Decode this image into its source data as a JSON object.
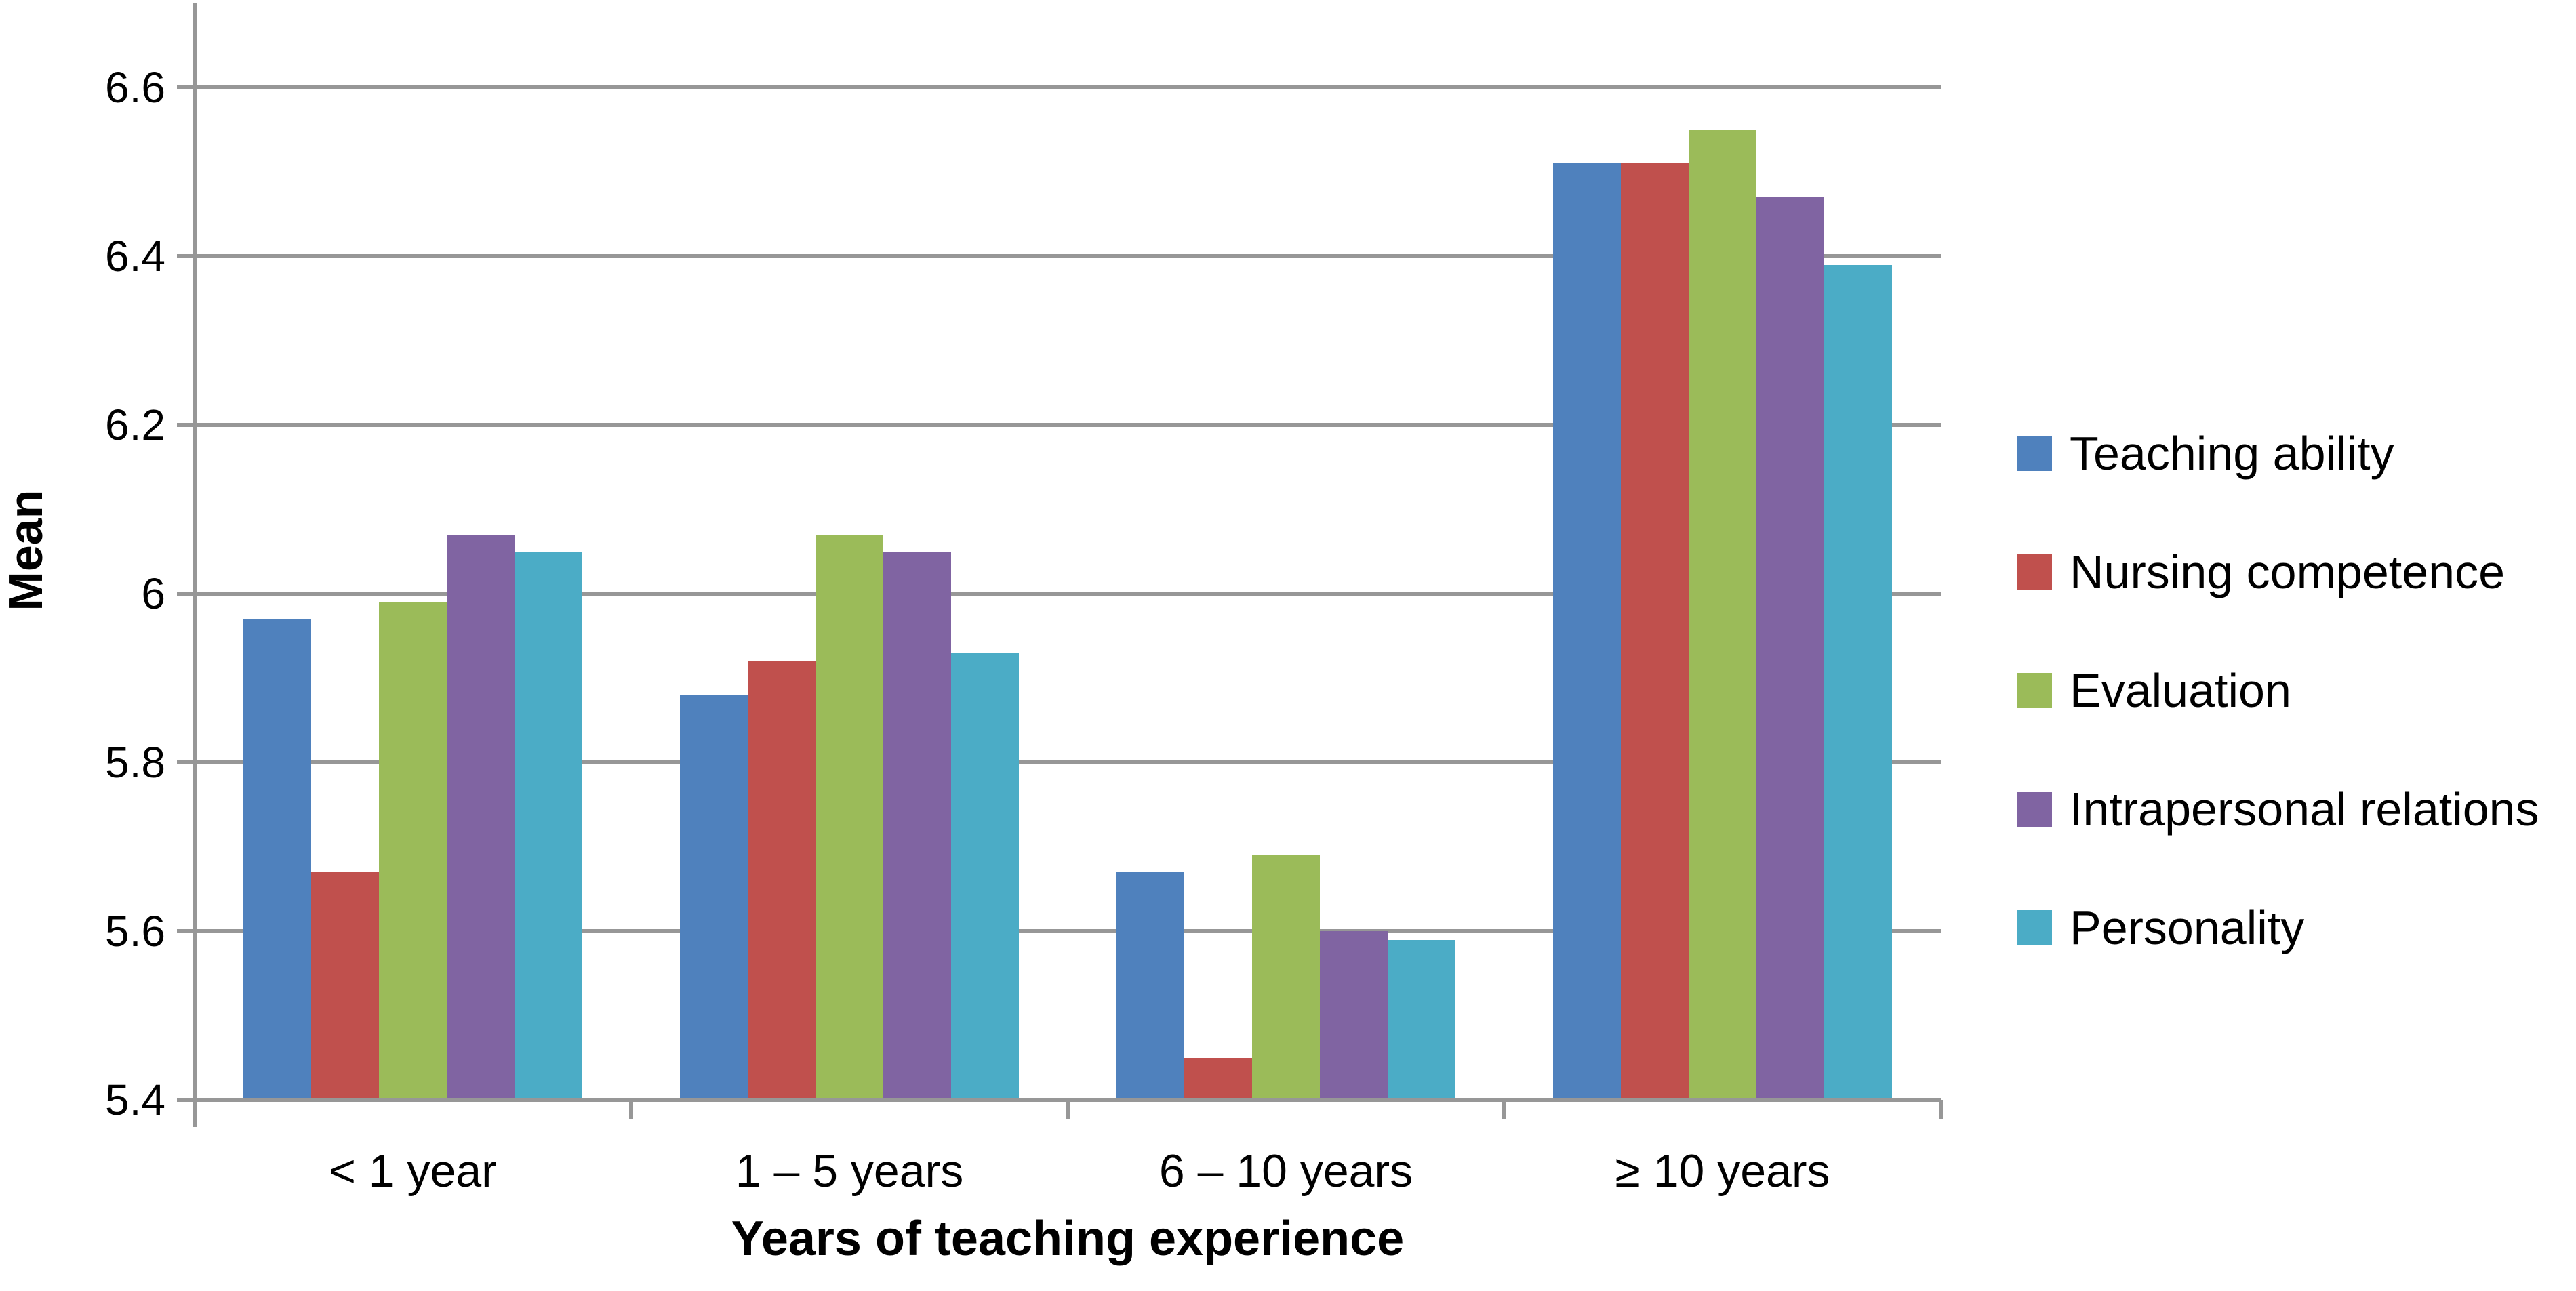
{
  "chart_data": {
    "type": "bar",
    "title": "",
    "xlabel": "Years of teaching experience",
    "ylabel": "Mean",
    "categories": [
      "< 1 year",
      "1 – 5 years",
      "6 –  10 years",
      "≥ 10 years"
    ],
    "series": [
      {
        "name": "Teaching ability",
        "color": "#4F81BD",
        "values": [
          5.97,
          5.88,
          5.67,
          6.51
        ]
      },
      {
        "name": "Nursing competence",
        "color": "#C0504D",
        "values": [
          5.67,
          5.92,
          5.45,
          6.51
        ]
      },
      {
        "name": "Evaluation",
        "color": "#9BBB59",
        "values": [
          5.99,
          6.07,
          5.69,
          6.55
        ]
      },
      {
        "name": "Intrapersonal relations",
        "color": "#8064A2",
        "values": [
          6.07,
          6.05,
          5.6,
          6.47
        ]
      },
      {
        "name": "Personality",
        "color": "#4BACC6",
        "values": [
          6.05,
          5.93,
          5.59,
          6.39
        ]
      }
    ],
    "ylim": [
      5.4,
      6.7
    ],
    "yticks": [
      {
        "value": 5.4,
        "label": "5.4"
      },
      {
        "value": 5.6,
        "label": "5.6"
      },
      {
        "value": 5.8,
        "label": "5.8"
      },
      {
        "value": 6.0,
        "label": "6"
      },
      {
        "value": 6.2,
        "label": "6.2"
      },
      {
        "value": 6.4,
        "label": "6.4"
      },
      {
        "value": 6.6,
        "label": "6.6"
      }
    ],
    "grid": "horizontal-only",
    "legend_position": "right",
    "axis_color": "#979797",
    "text_color": "#000000",
    "background_color": "#FFFFFF"
  }
}
